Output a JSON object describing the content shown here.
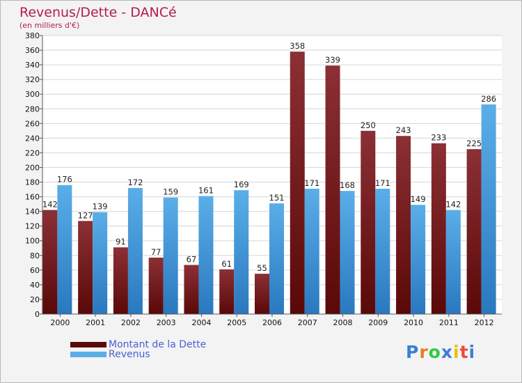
{
  "header": {
    "title": "Revenus/Dette - DANCé",
    "subtitle": "(en milliers d'€)"
  },
  "legend": {
    "dette_label": "Montant de la Dette",
    "revenus_label": "Revenus"
  },
  "logo": {
    "letters": [
      "P",
      "r",
      "o",
      "x",
      "i",
      "t",
      "i"
    ],
    "colors": [
      "#3a7fd5",
      "#e67e22",
      "#2ecc40",
      "#3a7fd5",
      "#e6c200",
      "#e74c3c",
      "#3a7fd5"
    ]
  },
  "colors": {
    "dette_top": "#8b3035",
    "dette_bottom": "#5a0808",
    "revenus_top": "#5aaee8",
    "revenus_bottom": "#2a78bf"
  },
  "chart_data": {
    "type": "bar",
    "categories": [
      "2000",
      "2001",
      "2002",
      "2003",
      "2004",
      "2005",
      "2006",
      "2007",
      "2008",
      "2009",
      "2010",
      "2011",
      "2012"
    ],
    "series": [
      {
        "name": "Montant de la Dette",
        "values": [
          142,
          127,
          91,
          77,
          67,
          61,
          55,
          358,
          339,
          250,
          243,
          233,
          225
        ]
      },
      {
        "name": "Revenus",
        "values": [
          176,
          139,
          172,
          159,
          161,
          169,
          151,
          171,
          168,
          171,
          149,
          142,
          286
        ]
      }
    ],
    "title": "Revenus/Dette - DANCé",
    "subtitle": "(en milliers d'€)",
    "xlabel": "",
    "ylabel": "",
    "ylim": [
      0,
      380
    ],
    "ytick_step": 20,
    "grid": true,
    "legend_position": "bottom-left"
  }
}
